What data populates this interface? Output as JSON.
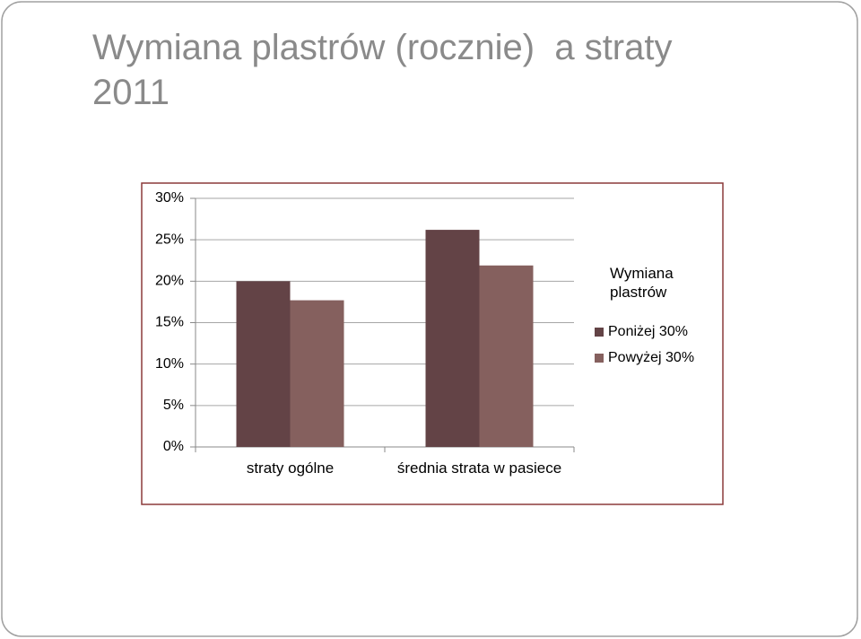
{
  "chart_data": {
    "type": "bar",
    "title": "Wymiana plastrów (rocznie)  a straty 2011",
    "categories": [
      "straty ogólne",
      "średnia strata w pasiece"
    ],
    "series": [
      {
        "name": "Poniżej 30%",
        "color": "#634346",
        "values": [
          20,
          26.2
        ]
      },
      {
        "name": "Powyżej 30%",
        "color": "#85605e",
        "values": [
          17.7,
          21.9
        ]
      }
    ],
    "legend_title": "Wymiana plastrów",
    "legend": "right",
    "ylim": [
      0,
      30
    ],
    "yticks": [
      {
        "value": 0,
        "label": "0%"
      },
      {
        "value": 5,
        "label": "5%"
      },
      {
        "value": 10,
        "label": "10%"
      },
      {
        "value": 15,
        "label": "15%"
      },
      {
        "value": 20,
        "label": "20%"
      },
      {
        "value": 25,
        "label": "25%"
      },
      {
        "value": 30,
        "label": "30%"
      }
    ],
    "grid": true
  }
}
